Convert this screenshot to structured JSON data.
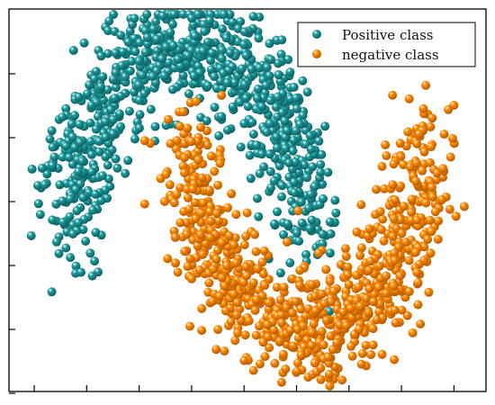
{
  "chart_data": {
    "type": "scatter",
    "title": "",
    "xlabel": "",
    "ylabel": "",
    "xlim": [
      -1.55,
      2.55
    ],
    "ylim": [
      -0.85,
      1.2
    ],
    "grid": false,
    "legend_position": "top-right",
    "series": [
      {
        "name": "Positive class",
        "color": "#1f9a9c",
        "shape": "upper-moon",
        "count": 900,
        "center": [
          0.0,
          0.0
        ],
        "radius": 1.0,
        "angle_range_deg": [
          0,
          180
        ],
        "noise": 0.15
      },
      {
        "name": "negative class",
        "color": "#ff8a00",
        "shape": "lower-moon",
        "count": 900,
        "center": [
          1.0,
          0.5
        ],
        "radius": 1.0,
        "angle_range_deg": [
          180,
          360
        ],
        "noise": 0.15
      }
    ]
  }
}
